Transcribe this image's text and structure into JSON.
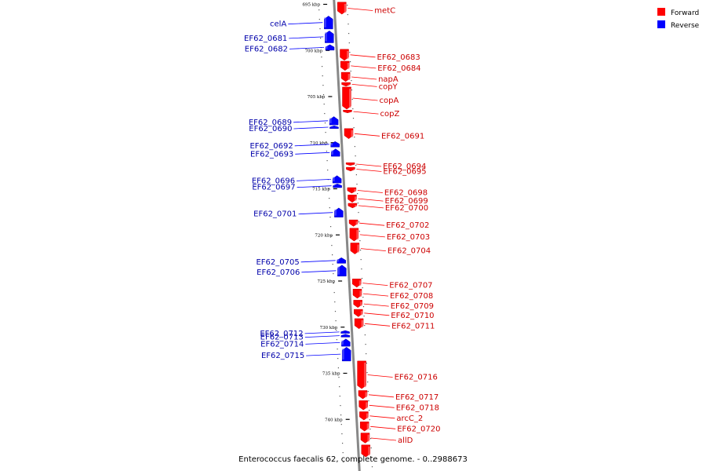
{
  "caption": "Enterococcus faecalis 62, complete genome. - 0..2988673",
  "legend": [
    {
      "label": "Forward",
      "color": "#ff0000"
    },
    {
      "label": "Reverse",
      "color": "#0000ff"
    }
  ],
  "colors": {
    "forward": "#ff0000",
    "reverse": "#0000ff",
    "backbone": "#888888"
  },
  "ticks": [
    {
      "label": "695 kbp",
      "kbp": 695
    },
    {
      "label": "700 kbp",
      "kbp": 700
    },
    {
      "label": "705 kbp",
      "kbp": 705
    },
    {
      "label": "710 kbp",
      "kbp": 710
    },
    {
      "label": "715 kbp",
      "kbp": 715
    },
    {
      "label": "720 kbp",
      "kbp": 720
    },
    {
      "label": "725 kbp",
      "kbp": 725
    },
    {
      "label": "730 kbp",
      "kbp": 730
    },
    {
      "label": "735 kbp",
      "kbp": 735
    },
    {
      "label": "740 kbp",
      "kbp": 740
    }
  ],
  "forward_genes": [
    {
      "name": "metC",
      "start": 694.9,
      "end": 696.2
    },
    {
      "name": "EF62_0683",
      "start": 700.0,
      "end": 701.2
    },
    {
      "name": "EF62_0684",
      "start": 701.3,
      "end": 702.3
    },
    {
      "name": "napA",
      "start": 702.5,
      "end": 703.5
    },
    {
      "name": "copY",
      "start": 703.6,
      "end": 704.0
    },
    {
      "name": "copA",
      "start": 704.1,
      "end": 706.5
    },
    {
      "name": "copZ",
      "start": 706.6,
      "end": 706.9
    },
    {
      "name": "EF62_0691",
      "start": 708.6,
      "end": 709.7
    },
    {
      "name": "EF62_0694",
      "start": 712.3,
      "end": 712.6
    },
    {
      "name": "EF62_0695",
      "start": 712.8,
      "end": 713.2
    },
    {
      "name": "EF62_0698",
      "start": 715.0,
      "end": 715.6
    },
    {
      "name": "EF62_0699",
      "start": 715.8,
      "end": 716.6
    },
    {
      "name": "EF62_0700",
      "start": 716.7,
      "end": 717.2
    },
    {
      "name": "EF62_0702",
      "start": 718.5,
      "end": 719.2
    },
    {
      "name": "EF62_0703",
      "start": 719.4,
      "end": 720.8
    },
    {
      "name": "EF62_0704",
      "start": 721.0,
      "end": 722.2
    },
    {
      "name": "EF62_0707",
      "start": 724.9,
      "end": 725.8
    },
    {
      "name": "EF62_0708",
      "start": 726.0,
      "end": 727.0
    },
    {
      "name": "EF62_0709",
      "start": 727.2,
      "end": 728.0
    },
    {
      "name": "EF62_0710",
      "start": 728.2,
      "end": 729.0
    },
    {
      "name": "EF62_0711",
      "start": 729.2,
      "end": 730.3
    },
    {
      "name": "EF62_0716",
      "start": 733.8,
      "end": 736.8
    },
    {
      "name": "EF62_0717",
      "start": 737.0,
      "end": 737.9
    },
    {
      "name": "EF62_0718",
      "start": 738.1,
      "end": 739.1
    },
    {
      "name": "arcC_2",
      "start": 739.3,
      "end": 740.2
    },
    {
      "name": "EF62_0720",
      "start": 740.4,
      "end": 741.4
    },
    {
      "name": "allD",
      "start": 741.6,
      "end": 742.7
    },
    {
      "name": "",
      "start": 742.9,
      "end": 744.2
    }
  ],
  "reverse_genes": [
    {
      "name": "celA",
      "start": 696.4,
      "end": 697.8
    },
    {
      "name": "EF62_0681",
      "start": 698.0,
      "end": 699.3
    },
    {
      "name": "EF62_0682",
      "start": 699.5,
      "end": 700.1
    },
    {
      "name": "EF62_0689",
      "start": 707.3,
      "end": 708.2
    },
    {
      "name": "EF62_0690",
      "start": 708.3,
      "end": 708.6
    },
    {
      "name": "EF62_0692",
      "start": 710.0,
      "end": 710.6
    },
    {
      "name": "EF62_0693",
      "start": 710.8,
      "end": 711.6
    },
    {
      "name": "EF62_0696",
      "start": 713.7,
      "end": 714.5
    },
    {
      "name": "EF62_0697",
      "start": 714.6,
      "end": 715.0
    },
    {
      "name": "EF62_0701",
      "start": 717.2,
      "end": 718.2
    },
    {
      "name": "EF62_0705",
      "start": 722.6,
      "end": 723.2
    },
    {
      "name": "EF62_0706",
      "start": 723.4,
      "end": 724.6
    },
    {
      "name": "EF62_0712",
      "start": 730.5,
      "end": 730.8
    },
    {
      "name": "EF62_0713",
      "start": 730.9,
      "end": 731.2
    },
    {
      "name": "EF62_0714",
      "start": 731.4,
      "end": 732.2
    },
    {
      "name": "EF62_0715",
      "start": 732.3,
      "end": 733.8
    }
  ]
}
